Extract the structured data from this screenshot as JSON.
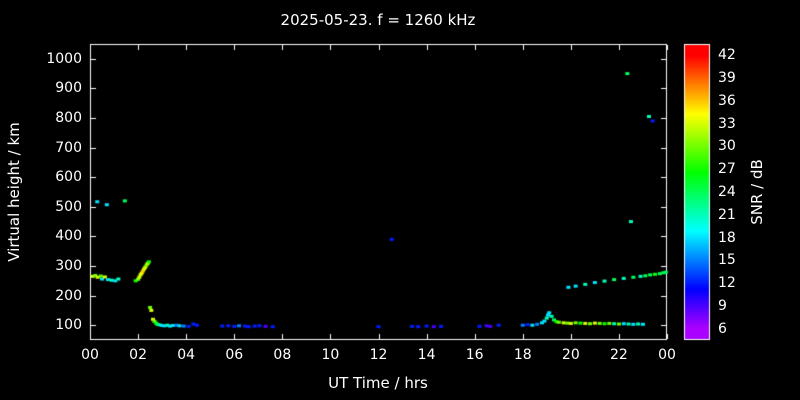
{
  "chart_data": {
    "type": "scatter",
    "title": "2025-05-23. f = 1260 kHz",
    "xlabel": "UT Time / hrs",
    "ylabel": "Virtual height / km",
    "xlim": [
      0,
      24
    ],
    "ylim": [
      50,
      1050
    ],
    "grid": false,
    "background": "#000000",
    "frame_color": "#ffffff",
    "text_color": "#ffffff",
    "xticks": {
      "hours": [
        0,
        2,
        4,
        6,
        8,
        10,
        12,
        14,
        16,
        18,
        20,
        22,
        24
      ],
      "labels": [
        "00",
        "02",
        "04",
        "06",
        "08",
        "10",
        "12",
        "14",
        "16",
        "18",
        "20",
        "22",
        "00"
      ]
    },
    "yticks": [
      100,
      200,
      300,
      400,
      500,
      600,
      700,
      800,
      900,
      1000
    ],
    "colorbar": {
      "label": "SNR / dB",
      "min": 4.5,
      "max": 43.5,
      "ticks": [
        42,
        39,
        36,
        33,
        30,
        27,
        24,
        21,
        18,
        15,
        12,
        9,
        6
      ],
      "top_color": "#ff0000",
      "bottom_color": "#9900ff"
    },
    "points": [
      [
        0.12,
        265,
        33
      ],
      [
        0.22,
        268,
        30
      ],
      [
        0.32,
        262,
        33
      ],
      [
        0.45,
        266,
        30
      ],
      [
        0.5,
        256,
        18
      ],
      [
        0.62,
        263,
        33
      ],
      [
        0.75,
        254,
        18
      ],
      [
        0.9,
        252,
        21
      ],
      [
        1.05,
        250,
        18
      ],
      [
        1.18,
        256,
        21
      ],
      [
        0.3,
        517,
        18
      ],
      [
        0.7,
        507,
        18
      ],
      [
        1.45,
        520,
        24
      ],
      [
        1.9,
        250,
        27
      ],
      [
        2.0,
        255,
        30
      ],
      [
        2.05,
        262,
        33
      ],
      [
        2.1,
        270,
        33
      ],
      [
        2.15,
        276,
        34
      ],
      [
        2.2,
        283,
        36
      ],
      [
        2.25,
        290,
        33
      ],
      [
        2.3,
        296,
        33
      ],
      [
        2.35,
        303,
        30
      ],
      [
        2.4,
        309,
        33
      ],
      [
        2.45,
        314,
        27
      ],
      [
        2.5,
        160,
        30
      ],
      [
        2.55,
        150,
        33
      ],
      [
        2.62,
        120,
        33
      ],
      [
        2.68,
        113,
        30
      ],
      [
        2.75,
        107,
        27
      ],
      [
        2.8,
        103,
        24
      ],
      [
        2.9,
        101,
        21
      ],
      [
        3.0,
        99,
        18
      ],
      [
        3.1,
        98,
        18
      ],
      [
        3.22,
        100,
        21
      ],
      [
        3.33,
        97,
        18
      ],
      [
        3.45,
        99,
        18
      ],
      [
        3.6,
        100,
        15
      ],
      [
        3.72,
        98,
        18
      ],
      [
        3.9,
        97,
        15
      ],
      [
        4.1,
        96,
        12
      ],
      [
        4.3,
        104,
        12
      ],
      [
        4.45,
        100,
        12
      ],
      [
        5.5,
        97,
        12
      ],
      [
        5.75,
        98,
        12
      ],
      [
        6.0,
        96,
        12
      ],
      [
        6.2,
        98,
        15
      ],
      [
        6.45,
        97,
        12
      ],
      [
        6.6,
        95,
        12
      ],
      [
        6.85,
        97,
        12
      ],
      [
        7.05,
        98,
        12
      ],
      [
        7.3,
        96,
        9
      ],
      [
        7.6,
        95,
        12
      ],
      [
        12.0,
        95,
        12
      ],
      [
        12.55,
        390,
        12
      ],
      [
        13.4,
        96,
        12
      ],
      [
        13.65,
        95,
        12
      ],
      [
        14.0,
        97,
        12
      ],
      [
        14.3,
        95,
        9
      ],
      [
        14.6,
        96,
        12
      ],
      [
        16.2,
        96,
        12
      ],
      [
        16.5,
        98,
        9
      ],
      [
        16.65,
        96,
        9
      ],
      [
        17.0,
        100,
        12
      ],
      [
        18.0,
        100,
        15
      ],
      [
        18.2,
        102,
        12
      ],
      [
        18.4,
        100,
        18
      ],
      [
        18.6,
        103,
        15
      ],
      [
        18.8,
        108,
        18
      ],
      [
        18.9,
        114,
        18
      ],
      [
        19.0,
        124,
        21
      ],
      [
        19.05,
        134,
        18
      ],
      [
        19.1,
        142,
        18
      ],
      [
        19.2,
        130,
        21
      ],
      [
        19.3,
        118,
        24
      ],
      [
        19.4,
        112,
        27
      ],
      [
        19.5,
        110,
        30
      ],
      [
        19.7,
        108,
        33
      ],
      [
        19.85,
        107,
        30
      ],
      [
        20.0,
        106,
        33
      ],
      [
        20.2,
        108,
        30
      ],
      [
        20.4,
        107,
        27
      ],
      [
        20.6,
        106,
        33
      ],
      [
        20.8,
        105,
        30
      ],
      [
        21.0,
        107,
        33
      ],
      [
        21.2,
        106,
        30
      ],
      [
        21.4,
        105,
        27
      ],
      [
        21.6,
        106,
        30
      ],
      [
        21.8,
        105,
        21
      ],
      [
        22.0,
        104,
        30
      ],
      [
        22.2,
        105,
        18
      ],
      [
        22.4,
        104,
        21
      ],
      [
        22.6,
        103,
        18
      ],
      [
        22.8,
        104,
        21
      ],
      [
        23.0,
        103,
        18
      ],
      [
        19.9,
        228,
        18
      ],
      [
        20.2,
        232,
        18
      ],
      [
        20.6,
        238,
        21
      ],
      [
        21.0,
        244,
        18
      ],
      [
        21.4,
        249,
        21
      ],
      [
        21.8,
        254,
        24
      ],
      [
        22.2,
        258,
        21
      ],
      [
        22.6,
        262,
        24
      ],
      [
        22.9,
        265,
        21
      ],
      [
        23.1,
        267,
        24
      ],
      [
        23.3,
        270,
        24
      ],
      [
        23.5,
        272,
        27
      ],
      [
        23.7,
        274,
        24
      ],
      [
        23.85,
        277,
        24
      ],
      [
        23.95,
        279,
        24
      ],
      [
        22.35,
        950,
        24
      ],
      [
        22.5,
        450,
        21
      ],
      [
        23.25,
        805,
        21
      ],
      [
        23.4,
        790,
        12
      ]
    ]
  }
}
